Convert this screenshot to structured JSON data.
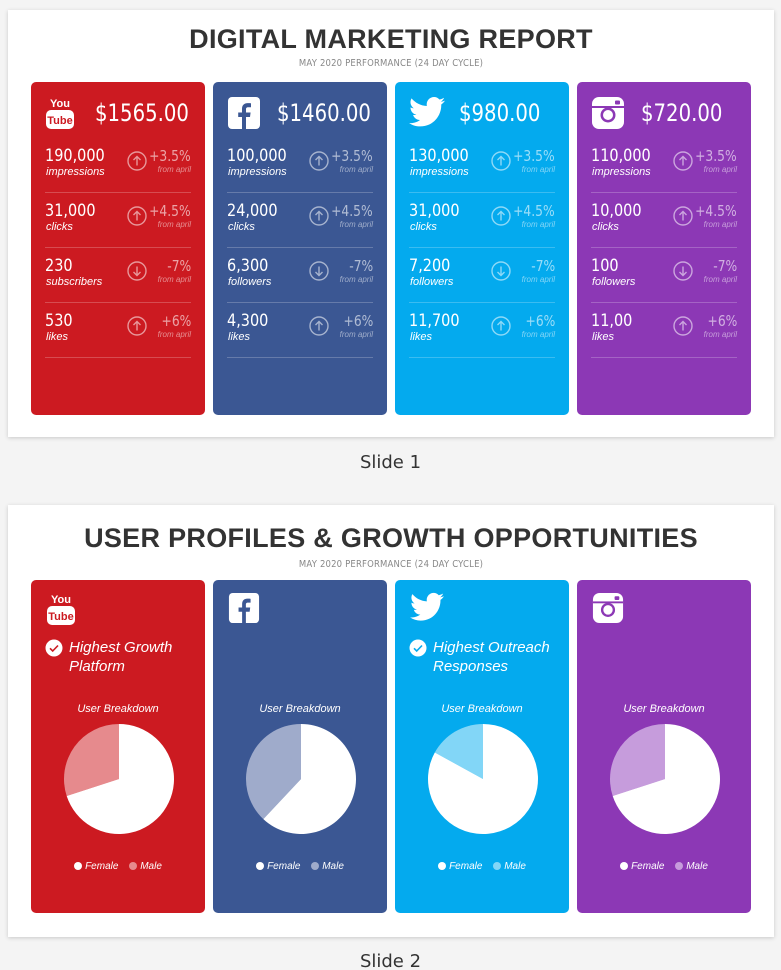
{
  "slide1": {
    "title": "DIGITAL MARKETING REPORT",
    "subtitle": "MAY 2020 PERFORMANCE (24 DAY CYCLE)",
    "caption": "Slide 1",
    "cards": [
      {
        "platform": "youtube",
        "icon": "youtube-icon",
        "color": "#cc1a21",
        "amount": "$1565.00",
        "metrics": [
          {
            "value": "190,000",
            "label": "impressions",
            "change": "+3.5%",
            "from": "from april",
            "direction": "up"
          },
          {
            "value": "31,000",
            "label": "clicks",
            "change": "+4.5%",
            "from": "from april",
            "direction": "up"
          },
          {
            "value": "230",
            "label": "subscribers",
            "change": "-7%",
            "from": "from april",
            "direction": "down"
          },
          {
            "value": "530",
            "label": "likes",
            "change": "+6%",
            "from": "from april",
            "direction": "up"
          }
        ]
      },
      {
        "platform": "facebook",
        "icon": "facebook-icon",
        "color": "#3b5793",
        "amount": "$1460.00",
        "metrics": [
          {
            "value": "100,000",
            "label": "impressions",
            "change": "+3.5%",
            "from": "from april",
            "direction": "up"
          },
          {
            "value": "24,000",
            "label": "clicks",
            "change": "+4.5%",
            "from": "from april",
            "direction": "up"
          },
          {
            "value": "6,300",
            "label": "followers",
            "change": "-7%",
            "from": "from april",
            "direction": "down"
          },
          {
            "value": "4,300",
            "label": "likes",
            "change": "+6%",
            "from": "from april",
            "direction": "up"
          }
        ]
      },
      {
        "platform": "twitter",
        "icon": "twitter-icon",
        "color": "#04aaee",
        "amount": "$980.00",
        "metrics": [
          {
            "value": "130,000",
            "label": "impressions",
            "change": "+3.5%",
            "from": "from april",
            "direction": "up"
          },
          {
            "value": "31,000",
            "label": "clicks",
            "change": "+4.5%",
            "from": "from april",
            "direction": "up"
          },
          {
            "value": "7,200",
            "label": "followers",
            "change": "-7%",
            "from": "from april",
            "direction": "down"
          },
          {
            "value": "11,700",
            "label": "likes",
            "change": "+6%",
            "from": "from april",
            "direction": "up"
          }
        ]
      },
      {
        "platform": "instagram",
        "icon": "instagram-icon",
        "color": "#8c38b5",
        "amount": "$720.00",
        "metrics": [
          {
            "value": "110,000",
            "label": "impressions",
            "change": "+3.5%",
            "from": "from april",
            "direction": "up"
          },
          {
            "value": "10,000",
            "label": "clicks",
            "change": "+4.5%",
            "from": "from april",
            "direction": "up"
          },
          {
            "value": "100",
            "label": "followers",
            "change": "-7%",
            "from": "from april",
            "direction": "down"
          },
          {
            "value": "11,00",
            "label": "likes",
            "change": "+6%",
            "from": "from april",
            "direction": "up"
          }
        ]
      }
    ]
  },
  "slide2": {
    "title": "USER PROFILES & GROWTH OPPORTUNITIES",
    "subtitle": "MAY 2020 PERFORMANCE (24 DAY CYCLE)",
    "caption": "Slide 2",
    "cards": [
      {
        "platform": "youtube",
        "icon": "youtube-icon",
        "color": "#cc1a21",
        "badge": "Highest Growth Platform",
        "breakdown_title": "User Breakdown",
        "legend": [
          "Female",
          "Male"
        ],
        "male_color": "#e68a8d"
      },
      {
        "platform": "facebook",
        "icon": "facebook-icon",
        "color": "#3b5793",
        "badge": "",
        "breakdown_title": "User Breakdown",
        "legend": [
          "Female",
          "Male"
        ],
        "male_color": "#9fabcb"
      },
      {
        "platform": "twitter",
        "icon": "twitter-icon",
        "color": "#04aaee",
        "badge": "Highest Outreach Responses",
        "breakdown_title": "User Breakdown",
        "legend": [
          "Female",
          "Male"
        ],
        "male_color": "#82d6f7"
      },
      {
        "platform": "instagram",
        "icon": "instagram-icon",
        "color": "#8c38b5",
        "badge": "",
        "breakdown_title": "User Breakdown",
        "legend": [
          "Female",
          "Male"
        ],
        "male_color": "#c69cdc"
      }
    ]
  },
  "chart_data": [
    {
      "type": "pie",
      "title": "User Breakdown",
      "categories": [
        "Female",
        "Male"
      ],
      "values": [
        70,
        30
      ]
    },
    {
      "type": "pie",
      "title": "User Breakdown",
      "categories": [
        "Female",
        "Male"
      ],
      "values": [
        62,
        38
      ]
    },
    {
      "type": "pie",
      "title": "User Breakdown",
      "categories": [
        "Female",
        "Male"
      ],
      "values": [
        83,
        17
      ]
    },
    {
      "type": "pie",
      "title": "User Breakdown",
      "categories": [
        "Female",
        "Male"
      ],
      "values": [
        70,
        30
      ]
    }
  ]
}
